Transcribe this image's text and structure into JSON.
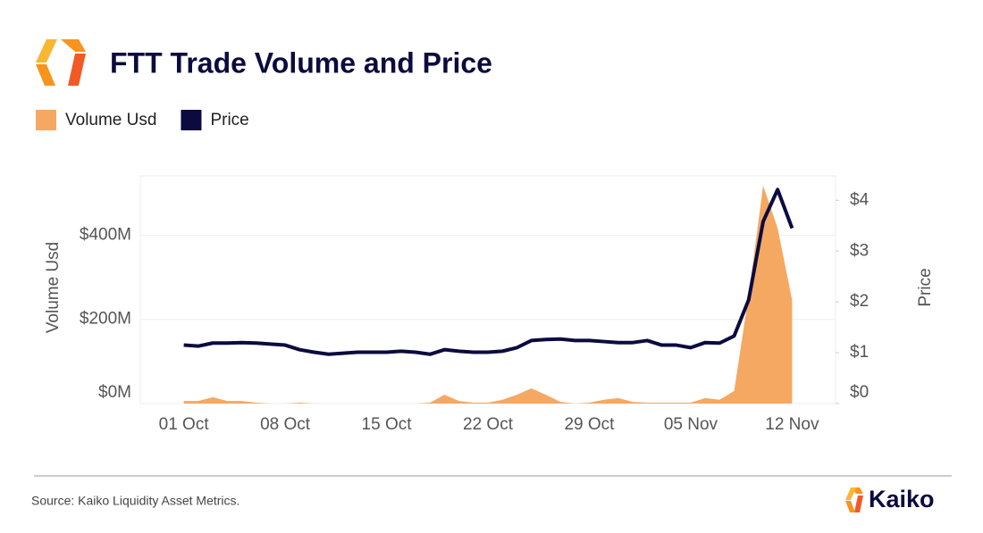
{
  "chart_data": {
    "type": "area-line",
    "title": "FTT Trade Volume and Price",
    "source": "Source: Kaiko Liquidity Asset Metrics.",
    "brand": "Kaiko",
    "y_label": "Volume Usd",
    "y2_label": "Price",
    "categories": [
      "01 Oct",
      null,
      null,
      null,
      null,
      null,
      null,
      "08 Oct",
      null,
      null,
      null,
      null,
      null,
      null,
      "15 Oct",
      null,
      null,
      null,
      null,
      null,
      null,
      "22 Oct",
      null,
      null,
      null,
      null,
      null,
      null,
      "29 Oct",
      null,
      null,
      null,
      null,
      null,
      null,
      "05 Nov",
      null,
      null,
      null,
      null,
      null,
      null,
      "12 Nov"
    ],
    "series": [
      {
        "name": "Volume Usd",
        "color": "#f5a862",
        "kind": "area",
        "values": [
          6,
          6,
          15,
          6,
          6,
          2,
          0,
          0,
          2,
          0,
          0,
          0,
          0,
          0,
          0,
          0,
          0,
          2,
          21,
          6,
          2,
          2,
          9,
          21,
          36,
          21,
          4,
          0,
          2,
          9,
          13,
          4,
          2,
          2,
          2,
          2,
          13,
          9,
          30,
          257,
          518,
          417,
          246
        ]
      },
      {
        "name": "Price",
        "color": "#0b0b3f",
        "kind": "line",
        "axis": "y2",
        "values": [
          1.15,
          1.13,
          1.19,
          1.19,
          1.2,
          1.19,
          1.17,
          1.15,
          1.06,
          1.01,
          0.97,
          0.99,
          1.01,
          1.01,
          1.01,
          1.03,
          1.01,
          0.97,
          1.06,
          1.03,
          1.01,
          1.01,
          1.03,
          1.1,
          1.24,
          1.26,
          1.27,
          1.24,
          1.24,
          1.22,
          1.2,
          1.2,
          1.24,
          1.15,
          1.15,
          1.1,
          1.2,
          1.19,
          1.33,
          2.04,
          3.58,
          4.21,
          3.45
        ]
      }
    ],
    "ylim": [
      0,
      541
    ],
    "yticks": [
      {
        "value": 0,
        "label": "$0M"
      },
      {
        "value": 200,
        "label": "$200M"
      },
      {
        "value": 400,
        "label": "$400M"
      }
    ],
    "y2lim": [
      0,
      4.48
    ],
    "y2ticks": [
      {
        "value": 0,
        "label": "$0"
      },
      {
        "value": 1,
        "label": "$1"
      },
      {
        "value": 2,
        "label": "$2"
      },
      {
        "value": 3,
        "label": "$3"
      },
      {
        "value": 4,
        "label": "$4"
      }
    ],
    "grid": true
  }
}
